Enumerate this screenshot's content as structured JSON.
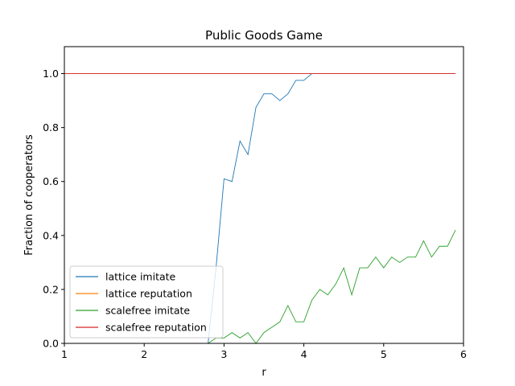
{
  "chart_data": {
    "type": "line",
    "title": "Public Goods Game",
    "xlabel": "r",
    "ylabel": "Fraction of cooperators",
    "xlim": [
      1,
      6
    ],
    "ylim": [
      0,
      1.1
    ],
    "xticks": [
      1,
      2,
      3,
      4,
      5,
      6
    ],
    "yticks": [
      0.0,
      0.2,
      0.4,
      0.6,
      0.8,
      1.0
    ],
    "xtick_labels": [
      "1",
      "2",
      "3",
      "4",
      "5",
      "6"
    ],
    "ytick_labels": [
      "0.0",
      "0.2",
      "0.4",
      "0.6",
      "0.8",
      "1.0"
    ],
    "grid": false,
    "legend_position": "lower-left",
    "x": [
      1.0,
      1.1,
      1.2,
      1.3,
      1.4,
      1.5,
      1.6,
      1.7,
      1.8,
      1.9,
      2.0,
      2.1,
      2.2,
      2.3,
      2.4,
      2.5,
      2.6,
      2.7,
      2.8,
      2.9,
      3.0,
      3.1,
      3.2,
      3.3,
      3.4,
      3.5,
      3.6,
      3.7,
      3.8,
      3.9,
      4.0,
      4.1,
      4.2,
      4.3,
      4.4,
      4.5,
      4.6,
      4.7,
      4.8,
      4.9,
      5.0,
      5.1,
      5.2,
      5.3,
      5.4,
      5.5,
      5.6,
      5.7,
      5.8,
      5.9
    ],
    "series": [
      {
        "name": "lattice imitate",
        "color": "#1f77b4",
        "values": [
          0,
          0,
          0,
          0,
          0,
          0,
          0,
          0,
          0,
          0,
          0,
          0,
          0,
          0,
          0,
          0,
          0,
          0,
          0,
          0.28,
          0.61,
          0.6,
          0.75,
          0.7,
          0.875,
          0.925,
          0.925,
          0.9,
          0.925,
          0.975,
          0.975,
          1,
          1,
          1,
          1,
          1,
          1,
          1,
          1,
          1,
          1,
          1,
          1,
          1,
          1,
          1,
          1,
          1,
          1,
          1
        ]
      },
      {
        "name": "lattice reputation",
        "color": "#ff7f0e",
        "values": [
          1,
          1,
          1,
          1,
          1,
          1,
          1,
          1,
          1,
          1,
          1,
          1,
          1,
          1,
          1,
          1,
          1,
          1,
          1,
          1,
          1,
          1,
          1,
          1,
          1,
          1,
          1,
          1,
          1,
          1,
          1,
          1,
          1,
          1,
          1,
          1,
          1,
          1,
          1,
          1,
          1,
          1,
          1,
          1,
          1,
          1,
          1,
          1,
          1,
          1
        ]
      },
      {
        "name": "scalefree imitate",
        "color": "#2ca02c",
        "values": [
          0,
          0,
          0,
          0,
          0,
          0,
          0,
          0,
          0,
          0,
          0,
          0,
          0,
          0,
          0,
          0,
          0,
          0,
          0,
          0.02,
          0.02,
          0.04,
          0.02,
          0.04,
          0.0,
          0.04,
          0.06,
          0.08,
          0.14,
          0.08,
          0.08,
          0.16,
          0.2,
          0.18,
          0.22,
          0.28,
          0.18,
          0.28,
          0.28,
          0.32,
          0.28,
          0.32,
          0.3,
          0.32,
          0.32,
          0.38,
          0.32,
          0.36,
          0.36,
          0.42
        ]
      },
      {
        "name": "scalefree reputation",
        "color": "#d62728",
        "values": [
          1,
          1,
          1,
          1,
          1,
          1,
          1,
          1,
          1,
          1,
          1,
          1,
          1,
          1,
          1,
          1,
          1,
          1,
          1,
          1,
          1,
          1,
          1,
          1,
          1,
          1,
          1,
          1,
          1,
          1,
          1,
          1,
          1,
          1,
          1,
          1,
          1,
          1,
          1,
          1,
          1,
          1,
          1,
          1,
          1,
          1,
          1,
          1,
          1,
          1
        ]
      }
    ]
  }
}
